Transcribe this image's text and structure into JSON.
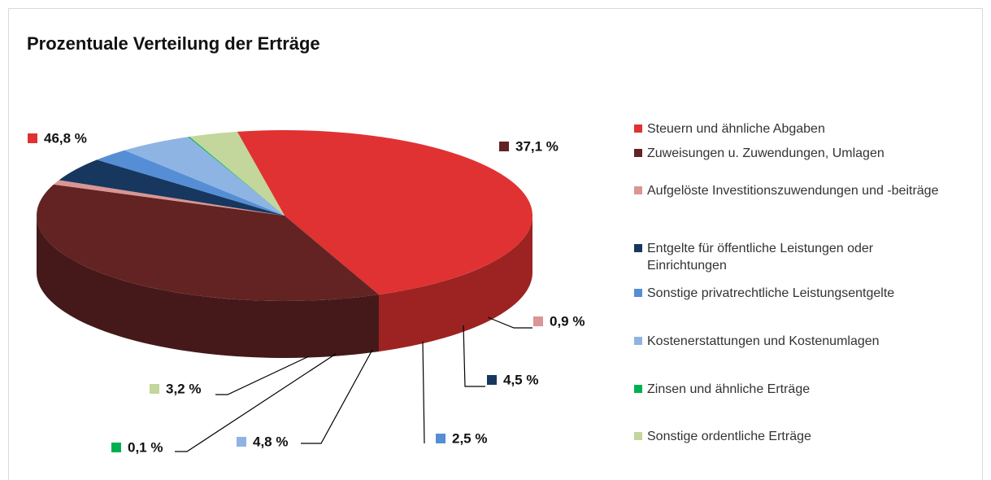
{
  "chart_data": {
    "type": "pie3d",
    "title": "Prozentuale Verteilung der Erträge",
    "categories": [
      "Steuern und ähnliche Abgaben",
      "Zuweisungen u. Zuwendungen, Umlagen",
      "Aufgelöste Investitionszuwendungen und -beiträge",
      "Entgelte für öffentliche Leistungen oder Einrichtungen",
      "Sonstige privatrechtliche Leistungsentgelte",
      "Kostenerstattungen und Kostenumlagen",
      "Zinsen und ähnliche Erträge",
      "Sonstige ordentliche Erträge"
    ],
    "values": [
      46.8,
      37.1,
      0.9,
      4.5,
      2.5,
      4.8,
      0.1,
      3.2
    ],
    "value_labels": [
      "46,8 %",
      "37,1 %",
      "0,9 %",
      "4,5 %",
      "2,5 %",
      "4,8 %",
      "0,1 %",
      "3,2 %"
    ],
    "colors": [
      "#e03232",
      "#632323",
      "#d99694",
      "#17375e",
      "#558ed5",
      "#8eb4e3",
      "#00b050",
      "#c3d69b"
    ],
    "legend": "right"
  }
}
